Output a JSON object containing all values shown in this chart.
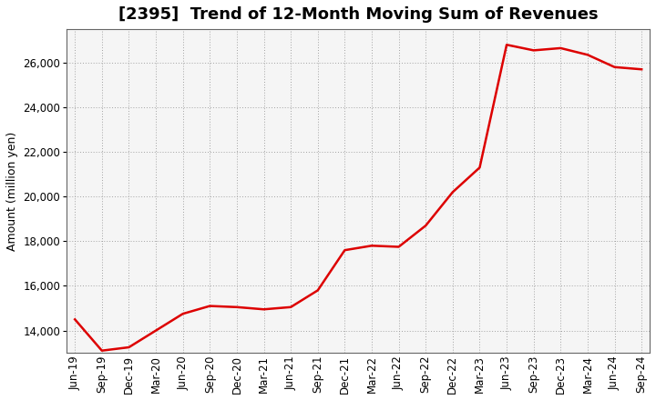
{
  "title": "[2395]  Trend of 12-Month Moving Sum of Revenues",
  "ylabel": "Amount (million yen)",
  "line_color": "#dd0000",
  "background_color": "#ffffff",
  "plot_bg_color": "#f5f5f5",
  "grid_color": "#999999",
  "x_labels": [
    "Jun-19",
    "Sep-19",
    "Dec-19",
    "Mar-20",
    "Jun-20",
    "Sep-20",
    "Dec-20",
    "Mar-21",
    "Jun-21",
    "Sep-21",
    "Dec-21",
    "Mar-22",
    "Jun-22",
    "Sep-22",
    "Dec-22",
    "Mar-23",
    "Jun-23",
    "Sep-23",
    "Dec-23",
    "Mar-24",
    "Jun-24",
    "Sep-24"
  ],
  "values": [
    14500,
    13100,
    13250,
    14000,
    14750,
    15100,
    15050,
    14950,
    15050,
    15800,
    17600,
    17800,
    17750,
    18700,
    20200,
    21300,
    26800,
    26550,
    26650,
    26350,
    25800,
    25700
  ],
  "ylim_min": 13000,
  "ylim_max": 27500,
  "yticks": [
    14000,
    16000,
    18000,
    20000,
    22000,
    24000,
    26000
  ],
  "title_fontsize": 13,
  "axis_fontsize": 9,
  "tick_fontsize": 8.5,
  "linewidth": 1.8
}
